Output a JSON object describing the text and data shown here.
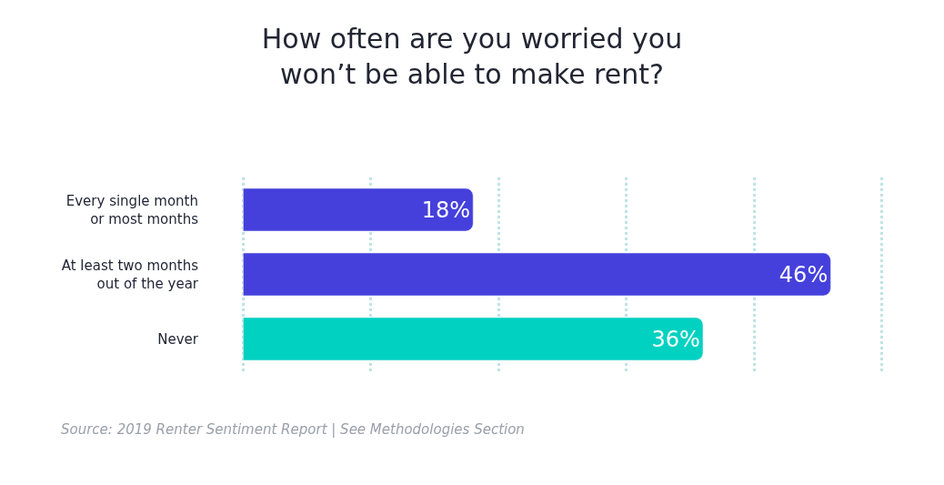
{
  "chart_data": {
    "type": "bar",
    "orientation": "horizontal",
    "title": "How often are you worried you\nwon’t be able to make rent?",
    "categories": [
      "Every single month\nor most months",
      "At least two months\nout of the year",
      "Never"
    ],
    "values": [
      18,
      46,
      36
    ],
    "colors": [
      "#4540dc",
      "#4540dc",
      "#00d1c1"
    ],
    "value_labels": [
      "18%",
      "46%",
      "36%"
    ],
    "xticks": [
      {
        "value": 0,
        "label": null
      },
      {
        "value": 10,
        "label": null
      },
      {
        "value": 20,
        "label": null
      },
      {
        "value": 30,
        "label": null
      },
      {
        "value": 40,
        "label": null
      },
      {
        "value": 50,
        "label": null
      }
    ],
    "grid": "x",
    "tick_labels": "y",
    "legend": false,
    "annotations": [
      "Source: 2019 Renter Sentiment Report | See Methodologies Section"
    ]
  }
}
